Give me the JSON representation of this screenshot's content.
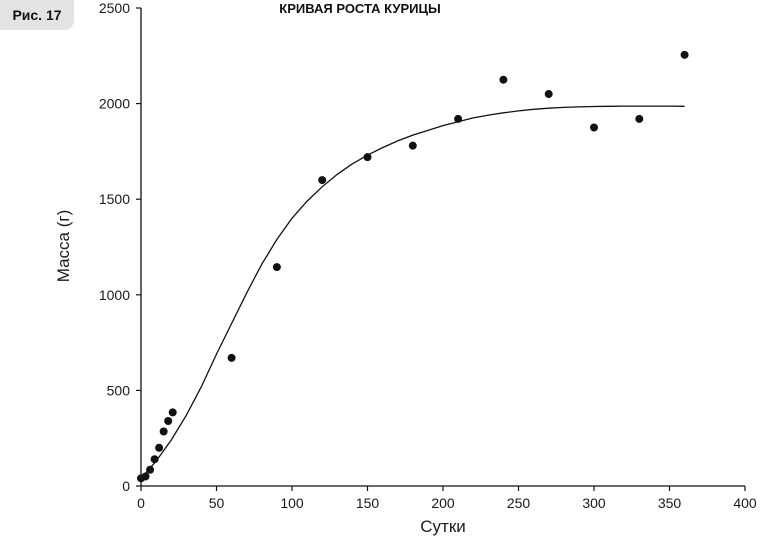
{
  "figure_label": "Рис. 17",
  "chart_data": {
    "type": "scatter",
    "title": "КРИВАЯ РОСТА КУРИЦЫ",
    "xlabel": "Сутки",
    "ylabel": "Масса (г)",
    "xlim": [
      0,
      400
    ],
    "ylim": [
      0,
      2500
    ],
    "x_ticks": [
      0,
      50,
      100,
      150,
      200,
      250,
      300,
      350,
      400
    ],
    "y_ticks": [
      0,
      500,
      1000,
      1500,
      2000,
      2500
    ],
    "x_tick_labels": [
      "0",
      "50",
      "100",
      "150",
      "200",
      "250",
      "300",
      "350",
      "400"
    ],
    "y_tick_labels": [
      "0",
      "500",
      "1000",
      "1500",
      "2000",
      "2500"
    ],
    "grid": false,
    "series": [
      {
        "type": "scatter",
        "x": [
          0,
          3,
          6,
          9,
          12,
          15,
          18,
          21,
          60,
          90,
          120,
          150,
          180,
          210,
          240,
          270,
          300,
          330,
          360
        ],
        "y": [
          40,
          50,
          85,
          140,
          200,
          285,
          340,
          385,
          670,
          1145,
          1600,
          1720,
          1780,
          1920,
          2125,
          2050,
          1875,
          1920,
          2255
        ]
      },
      {
        "type": "line",
        "x": [
          0,
          10,
          20,
          30,
          40,
          50,
          60,
          70,
          80,
          90,
          100,
          110,
          120,
          130,
          140,
          150,
          160,
          170,
          180,
          190,
          200,
          210,
          220,
          230,
          240,
          250,
          260,
          270,
          280,
          290,
          300,
          310,
          320,
          330,
          340,
          350,
          360
        ],
        "y": [
          40,
          130,
          240,
          370,
          520,
          690,
          850,
          1010,
          1160,
          1290,
          1400,
          1490,
          1565,
          1630,
          1685,
          1730,
          1770,
          1805,
          1835,
          1860,
          1885,
          1905,
          1925,
          1940,
          1952,
          1962,
          1970,
          1976,
          1980,
          1983,
          1985,
          1986,
          1987,
          1987,
          1987,
          1987,
          1986
        ]
      }
    ]
  }
}
